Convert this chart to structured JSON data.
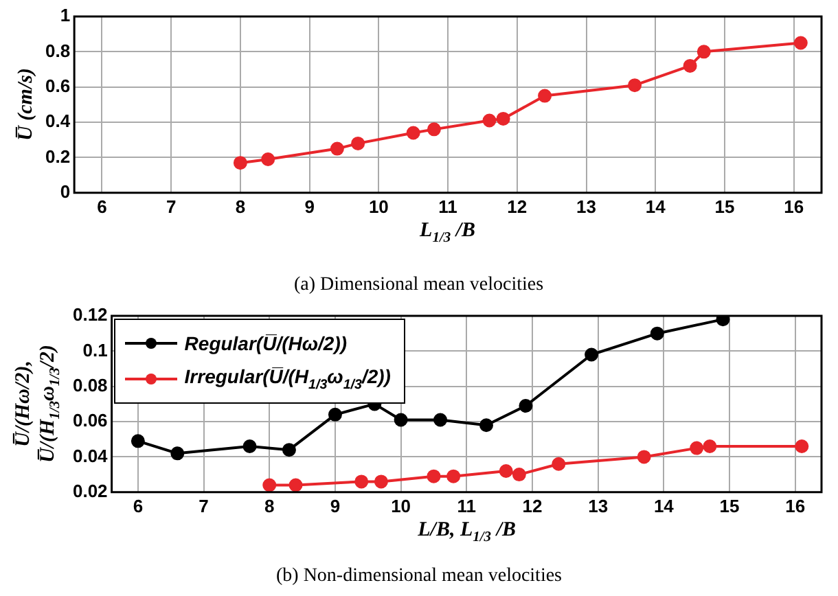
{
  "chart_data": [
    {
      "type": "line",
      "title": "(a) Dimensional mean velocities",
      "xlabel": "L$_{1/3}$ /B",
      "ylabel": "U̅ (cm/s)",
      "xlim": [
        5.6,
        16.4
      ],
      "xticks": [
        6,
        7,
        8,
        9,
        10,
        11,
        12,
        13,
        14,
        15,
        16
      ],
      "ylim": [
        0,
        1
      ],
      "yticks": [
        0,
        0.2,
        0.4,
        0.6,
        0.8,
        1
      ],
      "grid": true,
      "legend": false,
      "marker": "circle",
      "line_style": "solid",
      "series": [
        {
          "color": "#e8262b",
          "x": [
            8,
            8.4,
            9.4,
            9.7,
            10.5,
            10.8,
            11.6,
            11.8,
            12.4,
            13.7,
            14.5,
            14.7,
            16.1
          ],
          "values": [
            0.17,
            0.19,
            0.25,
            0.28,
            0.34,
            0.36,
            0.41,
            0.42,
            0.55,
            0.61,
            0.72,
            0.8,
            0.85
          ]
        }
      ]
    },
    {
      "type": "line",
      "title": "(b) Non-dimensional mean velocities",
      "xlabel": "L/B, L$_{1/3}$ /B",
      "ylabel": "U̅/(Hω/2),\nU̅/(H$_{1/3}$ω$_{1/3}$/2)",
      "xlim": [
        5.6,
        16.4
      ],
      "xticks": [
        6,
        7,
        8,
        9,
        10,
        11,
        12,
        13,
        14,
        15,
        16
      ],
      "ylim": [
        0.02,
        0.12
      ],
      "yticks": [
        0.02,
        0.04,
        0.06,
        0.08,
        0.1,
        0.12
      ],
      "grid": true,
      "legend": "top left",
      "marker": "circle",
      "line_style": "solid",
      "series": [
        {
          "name": "Regular(U̅/(Hω/2))",
          "color": "#000000",
          "x": [
            6,
            6.6,
            7.7,
            8.3,
            9,
            9.6,
            10,
            10.6,
            11.3,
            11.9,
            12.9,
            13.9,
            14.9
          ],
          "values": [
            0.049,
            0.042,
            0.046,
            0.044,
            0.064,
            0.07,
            0.061,
            0.061,
            0.058,
            0.069,
            0.098,
            0.11,
            0.118
          ]
        },
        {
          "name": "Irregular(U̅/(H$_{1/3}$ω$_{1/3}$/2))",
          "color": "#e8262b",
          "x": [
            8,
            8.4,
            9.4,
            9.7,
            10.5,
            10.8,
            11.6,
            11.8,
            12.4,
            13.7,
            14.5,
            14.7,
            16.1
          ],
          "values": [
            0.024,
            0.024,
            0.026,
            0.026,
            0.029,
            0.029,
            0.032,
            0.03,
            0.036,
            0.04,
            0.045,
            0.046,
            0.046
          ]
        }
      ]
    }
  ]
}
